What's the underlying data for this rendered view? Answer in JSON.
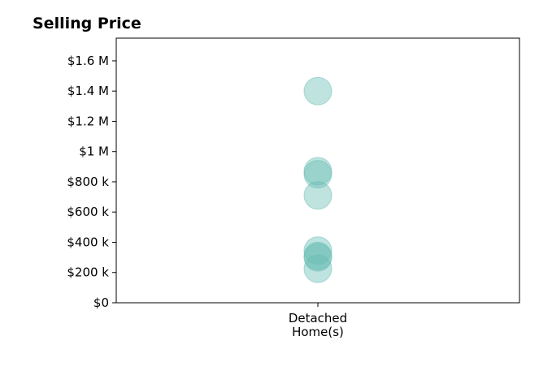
{
  "chart_data": {
    "type": "scatter",
    "title": "Selling Price",
    "xlabel": "",
    "ylabel": "",
    "categories": [
      [
        "Detached",
        "Home(s)"
      ]
    ],
    "ylim": [
      0,
      1750000
    ],
    "yticks": [
      {
        "value": 0,
        "label": "$0"
      },
      {
        "value": 200000,
        "label": "$200 k"
      },
      {
        "value": 400000,
        "label": "$400 k"
      },
      {
        "value": 600000,
        "label": "$600 k"
      },
      {
        "value": 800000,
        "label": "$800 k"
      },
      {
        "value": 1000000,
        "label": "$1 M"
      },
      {
        "value": 1200000,
        "label": "$1.2 M"
      },
      {
        "value": 1400000,
        "label": "$1.4 M"
      },
      {
        "value": 1600000,
        "label": "$1.6 M"
      }
    ],
    "series": [
      {
        "color": "#66bdb3",
        "points": [
          {
            "category": 0,
            "y": 1400000
          },
          {
            "category": 0,
            "y": 870000
          },
          {
            "category": 0,
            "y": 850000
          },
          {
            "category": 0,
            "y": 710000
          },
          {
            "category": 0,
            "y": 345000
          },
          {
            "category": 0,
            "y": 310000
          },
          {
            "category": 0,
            "y": 300000
          },
          {
            "category": 0,
            "y": 225000
          }
        ]
      }
    ],
    "grid": false,
    "legend": "none"
  }
}
